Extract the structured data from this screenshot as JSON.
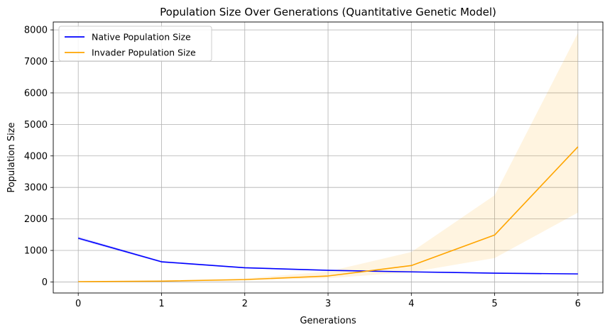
{
  "chart_data": {
    "type": "line",
    "title": "Population Size Over Generations (Quantitative Genetic Model)",
    "xlabel": "Generations",
    "ylabel": "Population Size",
    "x": [
      0,
      1,
      2,
      3,
      4,
      5,
      6
    ],
    "xlim": [
      -0.3,
      6.3
    ],
    "ylim": [
      -350,
      8250
    ],
    "xticks": [
      0,
      1,
      2,
      3,
      4,
      5,
      6
    ],
    "yticks": [
      0,
      1000,
      2000,
      3000,
      4000,
      5000,
      6000,
      7000,
      8000
    ],
    "grid": true,
    "legend_position": "upper left",
    "series": [
      {
        "name": "Native Population Size",
        "color": "#0000ff",
        "values": [
          1390,
          640,
          450,
          370,
          320,
          280,
          255
        ],
        "lower": [
          1340,
          610,
          430,
          355,
          305,
          265,
          240
        ],
        "upper": [
          1440,
          670,
          470,
          385,
          335,
          295,
          270
        ]
      },
      {
        "name": "Invader Population Size",
        "color": "#ffa500",
        "values": [
          10,
          25,
          75,
          190,
          520,
          1490,
          4290
        ],
        "lower": [
          5,
          15,
          50,
          120,
          310,
          760,
          2200
        ],
        "upper": [
          15,
          40,
          110,
          330,
          950,
          2750,
          7900
        ]
      }
    ]
  }
}
